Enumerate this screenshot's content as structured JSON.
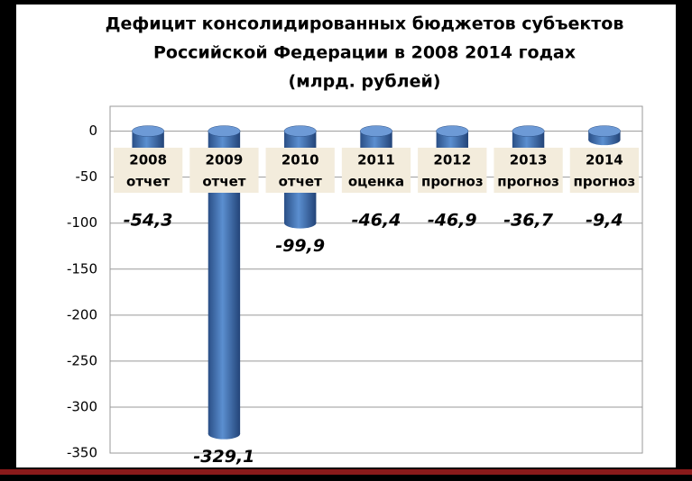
{
  "chart_data": {
    "type": "bar",
    "title": [
      "Дефицит консолидированных  бюджетов субъектов",
      "Российской Федерации в 2008  2014 годах",
      "(млрд. рублей)"
    ],
    "categories": [
      [
        "2008",
        "отчет"
      ],
      [
        "2009",
        "отчет"
      ],
      [
        "2010",
        "отчет"
      ],
      [
        "2011",
        "оценка"
      ],
      [
        "2012",
        "прогноз"
      ],
      [
        "2013",
        "прогноз"
      ],
      [
        "2014",
        "прогноз"
      ]
    ],
    "values": [
      -54.3,
      -329.1,
      -99.9,
      -46.4,
      -46.9,
      -36.7,
      -9.4
    ],
    "value_labels": [
      "-54,3",
      "-329,1",
      "-99,9",
      "-46,4",
      "-46,9",
      "-36,7",
      "-9,4"
    ],
    "color": "#3f6fb0",
    "ylim": [
      -350,
      27
    ],
    "yticks": [
      0,
      -50,
      -100,
      -150,
      -200,
      -250,
      -300,
      -350
    ],
    "grid": true
  }
}
